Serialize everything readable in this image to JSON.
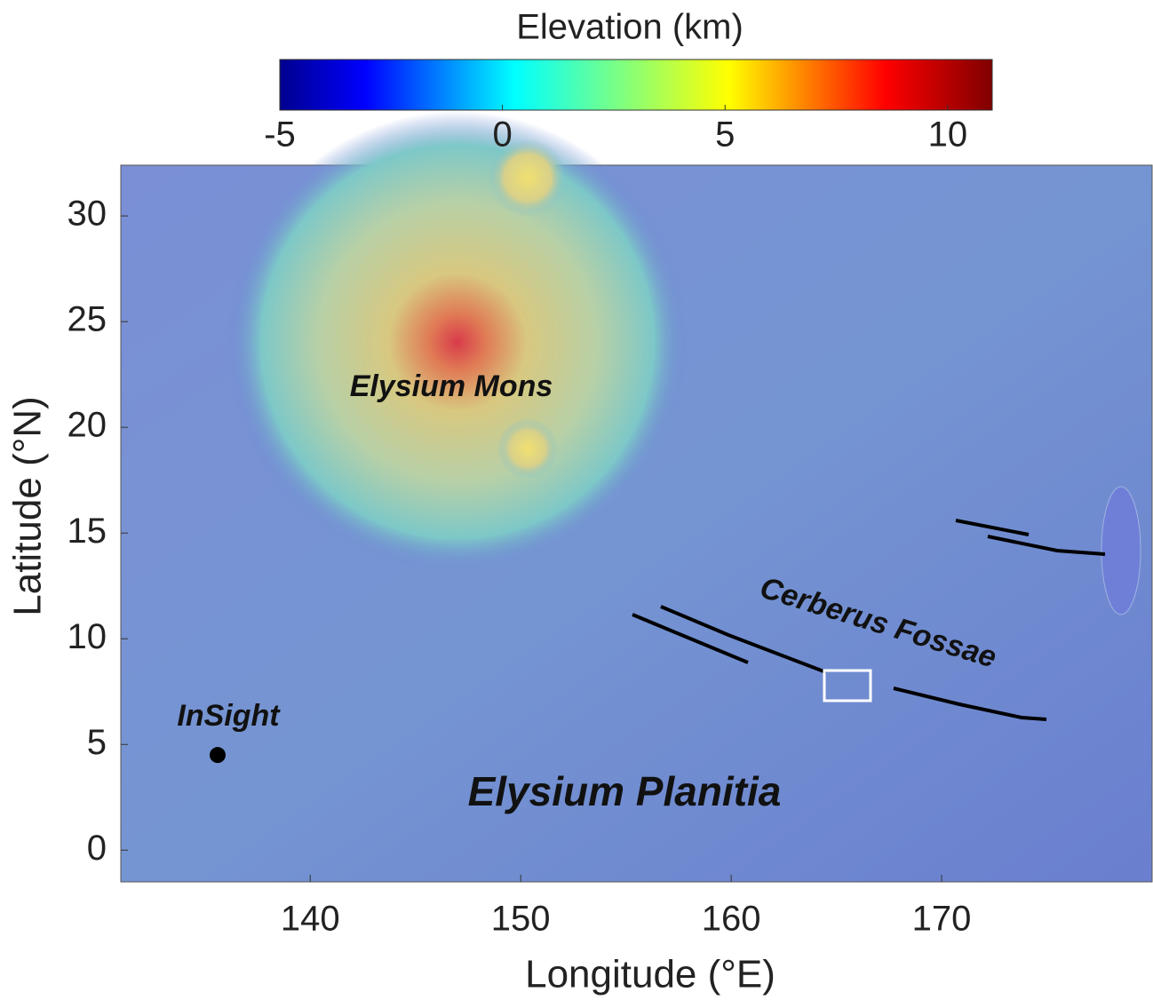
{
  "map": {
    "colorbar": {
      "title": "Elevation (km)",
      "lim": [
        -5,
        11
      ],
      "ticks": [
        -5,
        0,
        5,
        10
      ]
    },
    "xlabel": "Longitude (°E)",
    "ylabel": "Latitude (°N)",
    "xlim": [
      131,
      180
    ],
    "ylim": [
      -1.5,
      32.4
    ],
    "xticks": [
      140,
      150,
      160,
      170
    ],
    "yticks": [
      0,
      5,
      10,
      15,
      20,
      25,
      30
    ],
    "annotations": [
      "Elysium Mons",
      "Cerberus Fossae",
      "Elysium Planitia"
    ],
    "points": [
      {
        "name": "InSight",
        "x": 135.6,
        "y": 4.5
      }
    ]
  }
}
